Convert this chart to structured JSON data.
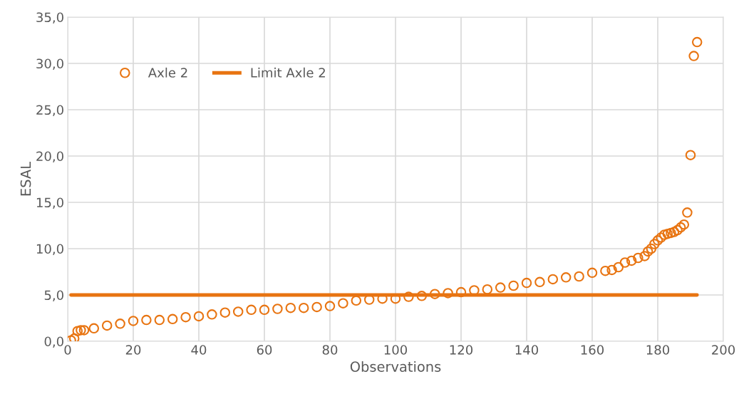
{
  "chart_data": {
    "type": "scatter",
    "xlabel": "Observations",
    "ylabel": "ESAL",
    "xlim": [
      0,
      200
    ],
    "xticks": [
      0,
      20,
      40,
      60,
      80,
      100,
      120,
      140,
      160,
      180,
      200
    ],
    "ylim": [
      0,
      35
    ],
    "yticks": [
      {
        "value": 0,
        "label": "0,0"
      },
      {
        "value": 5,
        "label": "5,0"
      },
      {
        "value": 10,
        "label": "10,0"
      },
      {
        "value": 15,
        "label": "15,0"
      },
      {
        "value": 20,
        "label": "20,0"
      },
      {
        "value": 25,
        "label": "25,0"
      },
      {
        "value": 30,
        "label": "30,0"
      },
      {
        "value": 35,
        "label": "35,0"
      }
    ],
    "grid": true,
    "legend": "top left",
    "series": [
      {
        "name": "Axle 2",
        "marker": "circle",
        "color": "#e87411",
        "x": [
          1,
          2,
          3,
          4,
          5,
          8,
          12,
          16,
          20,
          24,
          28,
          32,
          36,
          40,
          44,
          48,
          52,
          56,
          60,
          64,
          68,
          72,
          76,
          80,
          84,
          88,
          92,
          96,
          100,
          104,
          108,
          112,
          116,
          120,
          124,
          128,
          132,
          136,
          140,
          144,
          148,
          152,
          156,
          160,
          164,
          166,
          168,
          170,
          172,
          174,
          176,
          177,
          178,
          179,
          180,
          181,
          182,
          183,
          184,
          185,
          186,
          187,
          188,
          189,
          190,
          191,
          192
        ],
        "values": [
          0.1,
          0.3,
          1.1,
          1.2,
          1.2,
          1.4,
          1.7,
          1.9,
          2.2,
          2.3,
          2.3,
          2.4,
          2.6,
          2.7,
          2.9,
          3.1,
          3.2,
          3.4,
          3.4,
          3.5,
          3.6,
          3.6,
          3.7,
          3.8,
          4.1,
          4.4,
          4.5,
          4.6,
          4.6,
          4.8,
          4.9,
          5.1,
          5.2,
          5.3,
          5.5,
          5.6,
          5.8,
          6.0,
          6.3,
          6.4,
          6.7,
          6.9,
          7.0,
          7.4,
          7.6,
          7.7,
          8.0,
          8.5,
          8.7,
          9.0,
          9.2,
          9.7,
          10.0,
          10.5,
          10.9,
          11.2,
          11.5,
          11.6,
          11.7,
          11.8,
          12.0,
          12.3,
          12.6,
          13.9,
          20.1,
          30.8,
          32.3
        ]
      },
      {
        "name": "Limit Axle 2",
        "type": "line",
        "line_style": "solid",
        "color": "#e87411",
        "x": [
          1,
          192
        ],
        "values": [
          5.0,
          5.0
        ]
      }
    ]
  }
}
